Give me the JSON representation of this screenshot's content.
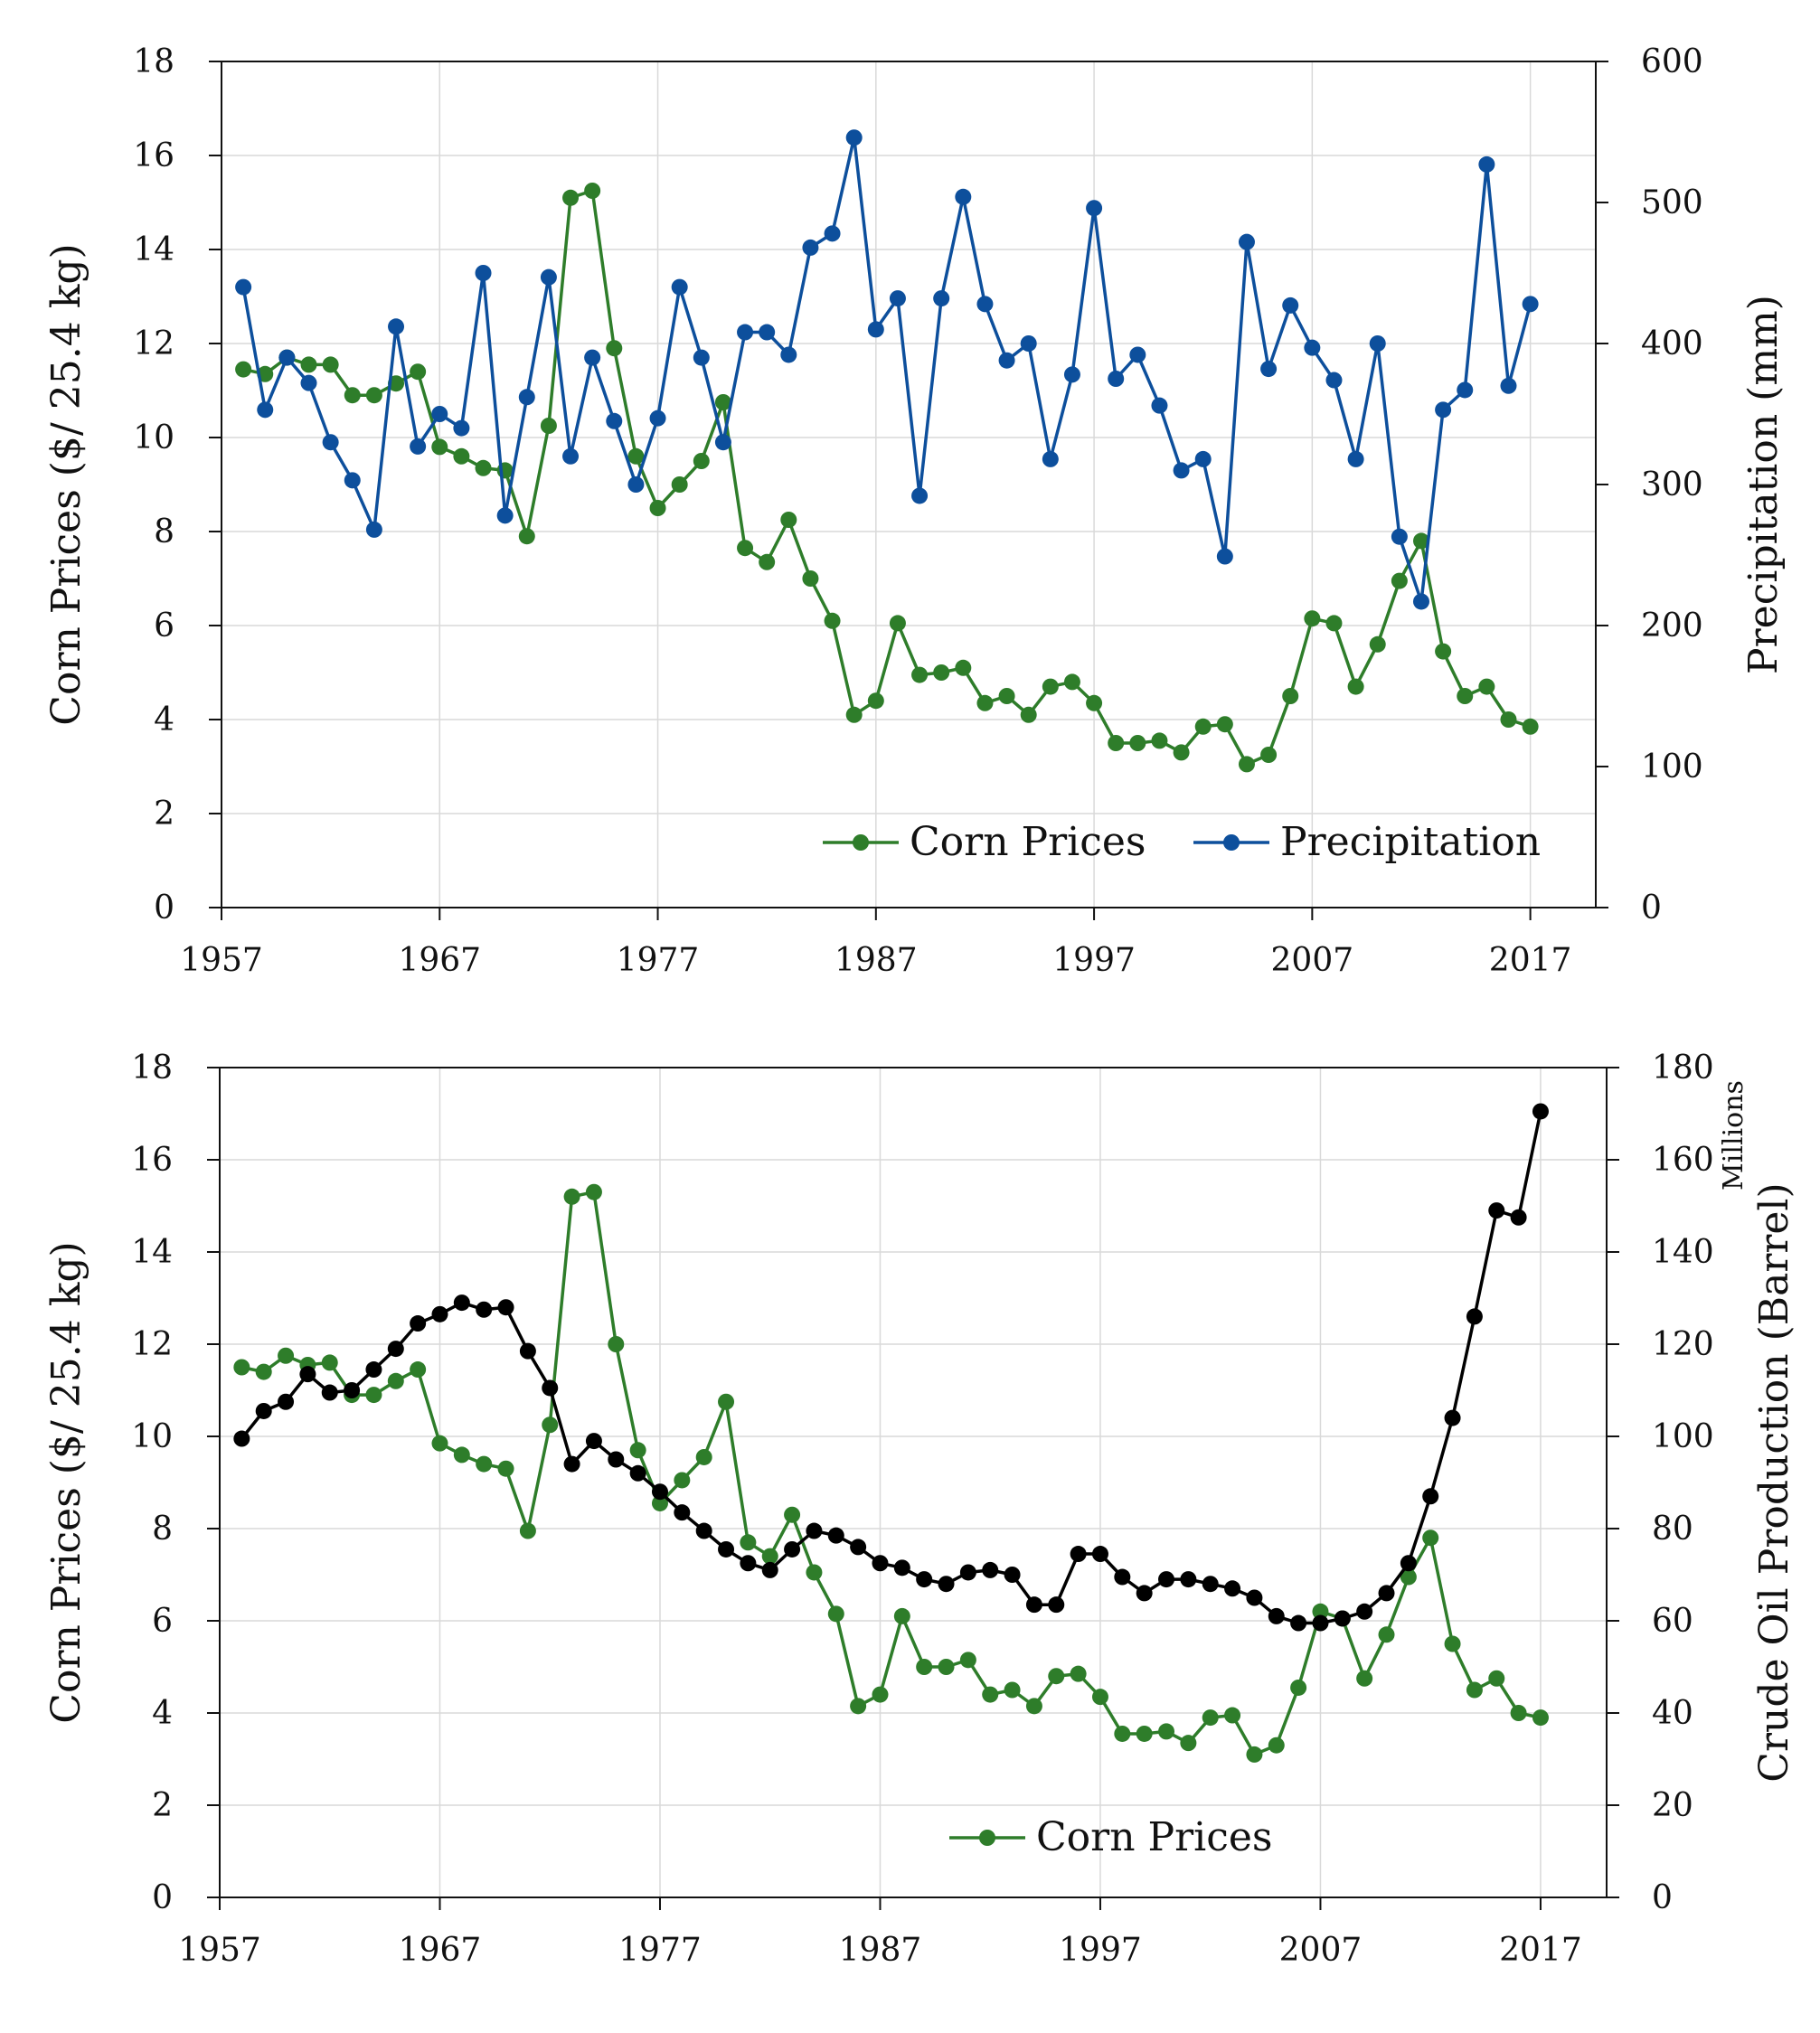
{
  "chart_data": [
    {
      "type": "line",
      "id": "top",
      "title": "",
      "xlabel": "",
      "ylabel": "Corn Prices ($/ 25.4 kg)",
      "ylabel_right": "Precipitation  (mm)",
      "xlim": [
        1957,
        2020
      ],
      "ylim": [
        0,
        18
      ],
      "ylim_right": [
        0,
        600
      ],
      "x_ticks": [
        1957,
        1967,
        1977,
        1987,
        1997,
        2007,
        2017
      ],
      "y_ticks": [
        0,
        2,
        4,
        6,
        8,
        10,
        12,
        14,
        16,
        18
      ],
      "y_ticks_right": [
        0,
        100,
        200,
        300,
        400,
        500,
        600
      ],
      "grid": true,
      "legend_position": "bottom-right",
      "x": [
        1958,
        1959,
        1960,
        1961,
        1962,
        1963,
        1964,
        1965,
        1966,
        1967,
        1968,
        1969,
        1970,
        1971,
        1972,
        1973,
        1974,
        1975,
        1976,
        1977,
        1978,
        1979,
        1980,
        1981,
        1982,
        1983,
        1984,
        1985,
        1986,
        1987,
        1988,
        1989,
        1990,
        1991,
        1992,
        1993,
        1994,
        1995,
        1996,
        1997,
        1998,
        1999,
        2000,
        2001,
        2002,
        2003,
        2004,
        2005,
        2006,
        2007,
        2008,
        2009,
        2010,
        2011,
        2012,
        2013,
        2014,
        2015,
        2016,
        2017
      ],
      "series": [
        {
          "name": "Corn Prices",
          "axis": "left",
          "color": "#2e7d2a",
          "values": [
            11.45,
            11.35,
            11.7,
            11.55,
            11.55,
            10.9,
            10.9,
            11.15,
            11.4,
            9.8,
            9.6,
            9.35,
            9.3,
            7.9,
            10.25,
            15.1,
            15.25,
            11.9,
            9.6,
            8.5,
            9.0,
            9.5,
            10.75,
            7.65,
            7.35,
            8.25,
            7.0,
            6.1,
            4.1,
            4.4,
            6.05,
            4.95,
            5.0,
            5.1,
            4.35,
            4.5,
            4.1,
            4.7,
            4.8,
            4.35,
            3.5,
            3.5,
            3.55,
            3.3,
            3.85,
            3.9,
            3.05,
            3.25,
            4.5,
            6.15,
            6.05,
            4.7,
            5.6,
            6.95,
            7.8,
            5.45,
            4.5,
            4.7,
            4.0,
            3.85
          ]
        },
        {
          "name": "Precipitation",
          "axis": "right",
          "color": "#0d4f9c",
          "values": [
            440,
            353,
            390,
            372,
            330,
            303,
            268,
            412,
            327,
            350,
            340,
            450,
            278,
            362,
            447,
            320,
            390,
            345,
            300,
            347,
            440,
            390,
            330,
            408,
            408,
            392,
            468,
            478,
            546,
            410,
            432,
            292,
            432,
            504,
            428,
            388,
            400,
            318,
            378,
            496,
            375,
            392,
            356,
            310,
            318,
            249,
            472,
            382,
            427,
            397,
            374,
            318,
            400,
            263,
            217,
            353,
            367,
            527,
            370,
            428
          ]
        }
      ]
    },
    {
      "type": "line",
      "id": "bottom",
      "title": "",
      "xlabel": "",
      "ylabel": "Corn Prices ($/ 25.4 kg)",
      "ylabel_right": "Crude Oil Production  (Barrel)",
      "right_axis_note": "Millions",
      "xlim": [
        1957,
        2020
      ],
      "ylim": [
        0,
        18
      ],
      "ylim_right": [
        0,
        180
      ],
      "x_ticks": [
        1957,
        1967,
        1977,
        1987,
        1997,
        2007,
        2017
      ],
      "y_ticks": [
        0,
        2,
        4,
        6,
        8,
        10,
        12,
        14,
        16,
        18
      ],
      "y_ticks_right": [
        0,
        20,
        40,
        60,
        80,
        100,
        120,
        140,
        160,
        180
      ],
      "grid": true,
      "legend_position": "bottom-center",
      "x": [
        1958,
        1959,
        1960,
        1961,
        1962,
        1963,
        1964,
        1965,
        1966,
        1967,
        1968,
        1969,
        1970,
        1971,
        1972,
        1973,
        1974,
        1975,
        1976,
        1977,
        1978,
        1979,
        1980,
        1981,
        1982,
        1983,
        1984,
        1985,
        1986,
        1987,
        1988,
        1989,
        1990,
        1991,
        1992,
        1993,
        1994,
        1995,
        1996,
        1997,
        1998,
        1999,
        2000,
        2001,
        2002,
        2003,
        2004,
        2005,
        2006,
        2007,
        2008,
        2009,
        2010,
        2011,
        2012,
        2013,
        2014,
        2015,
        2016,
        2017
      ],
      "series": [
        {
          "name": "Corn Prices",
          "axis": "left",
          "color": "#2e7d2a",
          "values": [
            11.5,
            11.4,
            11.75,
            11.55,
            11.6,
            10.9,
            10.9,
            11.2,
            11.45,
            9.85,
            9.6,
            9.4,
            9.3,
            7.95,
            10.25,
            15.2,
            15.3,
            12.0,
            9.7,
            8.55,
            9.05,
            9.55,
            10.75,
            7.7,
            7.4,
            8.3,
            7.05,
            6.15,
            4.15,
            4.4,
            6.1,
            5.0,
            5.0,
            5.15,
            4.4,
            4.5,
            4.15,
            4.8,
            4.85,
            4.35,
            3.55,
            3.55,
            3.6,
            3.35,
            3.9,
            3.95,
            3.1,
            3.3,
            4.55,
            6.2,
            6.05,
            4.75,
            5.7,
            6.95,
            7.8,
            5.5,
            4.5,
            4.75,
            4.0,
            3.9
          ]
        },
        {
          "name": "Crude Oil Production",
          "axis": "right",
          "color": "#000000",
          "show_in_legend": false,
          "values": [
            99.5,
            105.5,
            107.5,
            113.5,
            109.5,
            110,
            114.5,
            119,
            124.5,
            126.5,
            129,
            127.5,
            128,
            118.5,
            110.5,
            94,
            99,
            95,
            92,
            88,
            83.5,
            79.5,
            75.5,
            72.5,
            71,
            75.5,
            79.5,
            78.5,
            76,
            72.5,
            71.5,
            69,
            68,
            70.5,
            71,
            70,
            63.5,
            63.5,
            74.5,
            74.5,
            69.5,
            66,
            69,
            69,
            68,
            67,
            65,
            61,
            59.5,
            59.5,
            60.5,
            62,
            66,
            72.5,
            87,
            104,
            126,
            149,
            147.5,
            170.5
          ]
        }
      ]
    }
  ]
}
